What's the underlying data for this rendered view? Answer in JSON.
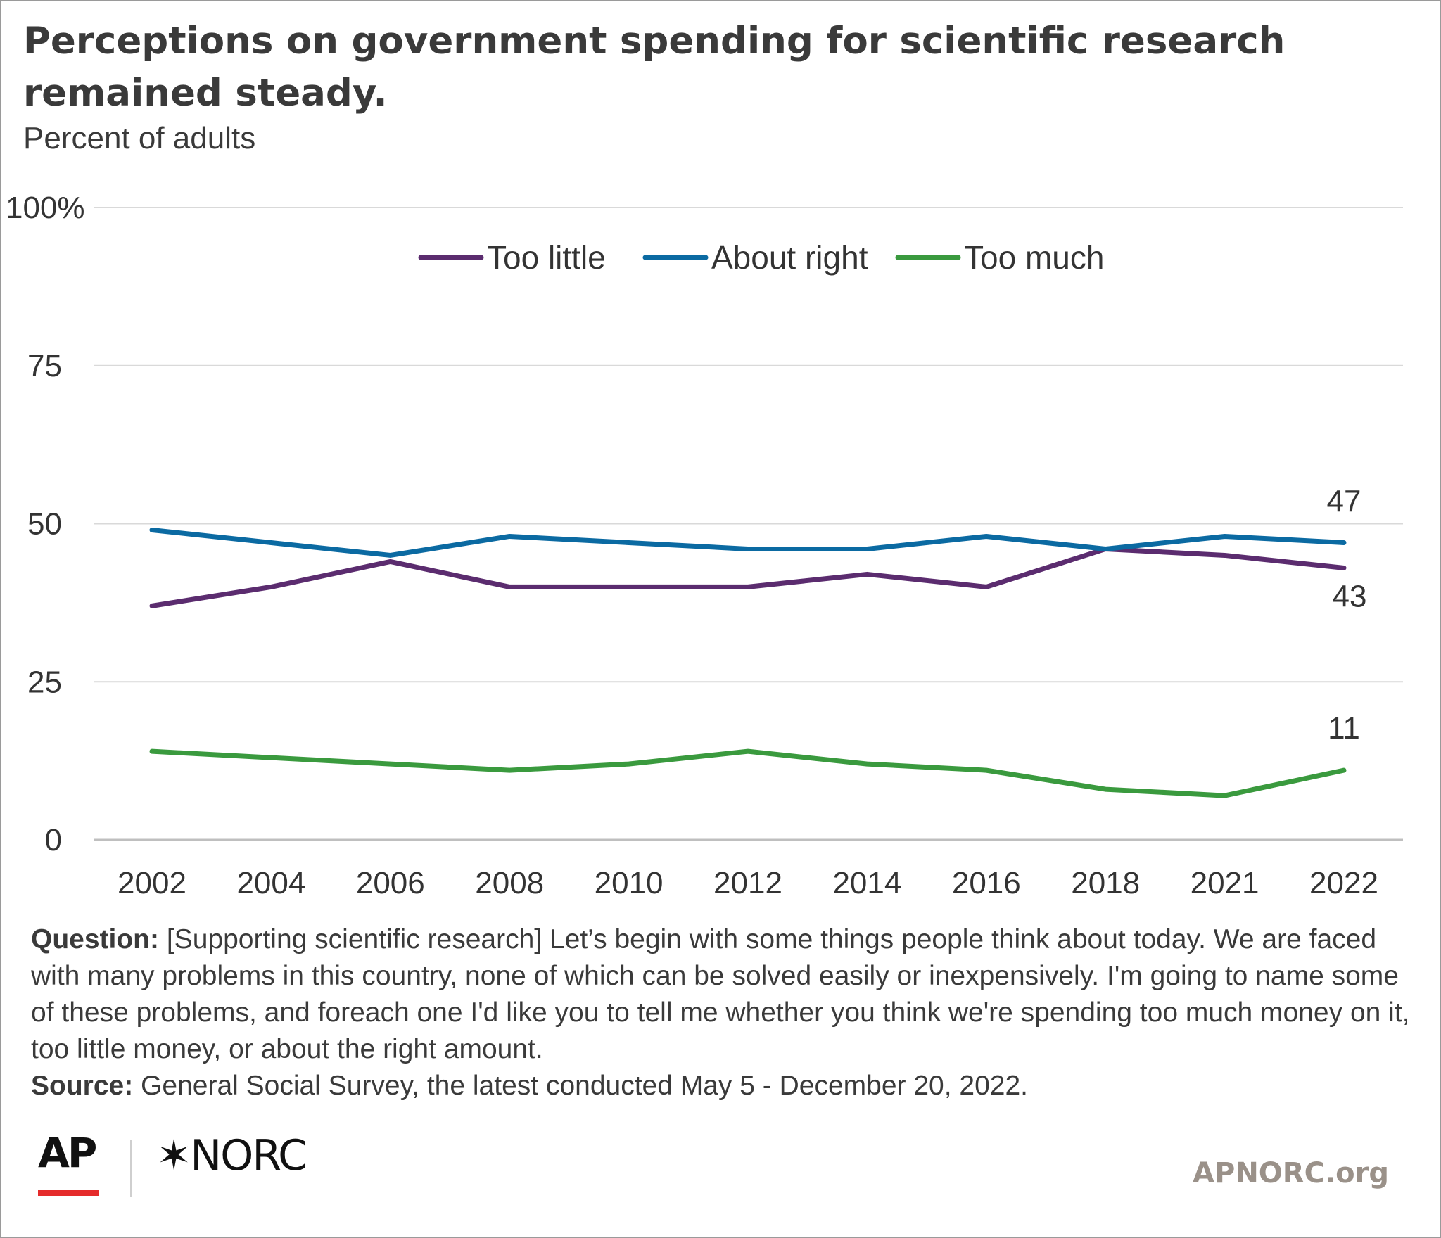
{
  "title": "Perceptions on government spending for scientific research remained steady.",
  "subtitle": "Percent of adults",
  "colors": {
    "too_little": "#5b2c6f",
    "about_right": "#0b6aa2",
    "too_much": "#3a9a3e",
    "grid": "#d9d9d9"
  },
  "chart_data": {
    "type": "line",
    "categories": [
      "2002",
      "2004",
      "2006",
      "2008",
      "2010",
      "2012",
      "2014",
      "2016",
      "2018",
      "2021",
      "2022"
    ],
    "ylim": [
      0,
      100
    ],
    "yticks": [
      "0",
      "25",
      "50",
      "75",
      "100%"
    ],
    "ytick_values": [
      0,
      25,
      50,
      75,
      100
    ],
    "grid": true,
    "legend": "top-center",
    "series": [
      {
        "name": "Too little",
        "color": "#5b2c6f",
        "values": [
          37,
          40,
          44,
          40,
          40,
          40,
          42,
          40,
          46,
          45,
          43
        ],
        "end_label": "43"
      },
      {
        "name": "About right",
        "color": "#0b6aa2",
        "values": [
          49,
          47,
          45,
          48,
          47,
          46,
          46,
          48,
          46,
          48,
          47
        ],
        "end_label": "47"
      },
      {
        "name": "Too much",
        "color": "#3a9a3e",
        "values": [
          14,
          13,
          12,
          11,
          12,
          14,
          12,
          11,
          8,
          7,
          11
        ],
        "end_label": "11"
      }
    ]
  },
  "notes": {
    "question_label": "Question:",
    "question_text": "[Supporting scientific research] Let’s begin with some things people think about today. We are faced with many problems in this country, none of which can be solved easily or inexpensively. I'm going to name some of these problems, and foreach one I'd like you to tell me whether you think we're spending too much money on it, too little money, or about the right amount.",
    "source_label": "Source:",
    "source_text": "General Social Survey, the latest conducted May 5 - December 20, 2022."
  },
  "footer": {
    "logo_ap": "AP",
    "logo_norc": "✶NORC",
    "site": "APNORC.org"
  }
}
